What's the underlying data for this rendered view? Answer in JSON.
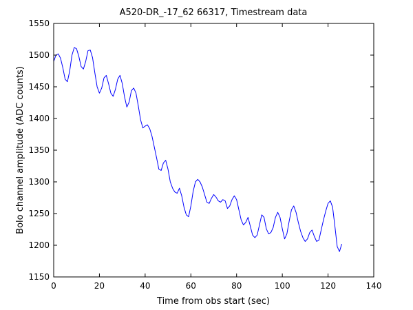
{
  "figure": {
    "background": "#ffffff",
    "axes_color": "#000000",
    "series_color": "#0000ff"
  },
  "chart_data": {
    "type": "line",
    "title": "A520-DR_-17_62 66317, Timestream data",
    "xlabel": "Time from obs start (sec)",
    "ylabel": "Bolo channel amplitude (ADC counts)",
    "xlim": [
      0,
      140
    ],
    "ylim": [
      1150,
      1550
    ],
    "xticks": [
      0,
      20,
      40,
      60,
      80,
      100,
      120,
      140
    ],
    "yticks": [
      1150,
      1200,
      1250,
      1300,
      1350,
      1400,
      1450,
      1500,
      1550
    ],
    "grid": false,
    "legend": "none",
    "series": [
      {
        "color": "#0000ff",
        "x": [
          0,
          1,
          2,
          3,
          4,
          5,
          6,
          7,
          8,
          9,
          10,
          11,
          12,
          13,
          14,
          15,
          16,
          17,
          18,
          19,
          20,
          21,
          22,
          23,
          24,
          25,
          26,
          27,
          28,
          29,
          30,
          31,
          32,
          33,
          34,
          35,
          36,
          37,
          38,
          39,
          40,
          41,
          42,
          43,
          44,
          45,
          46,
          47,
          48,
          49,
          50,
          51,
          52,
          53,
          54,
          55,
          56,
          57,
          58,
          59,
          60,
          61,
          62,
          63,
          64,
          65,
          66,
          67,
          68,
          69,
          70,
          71,
          72,
          73,
          74,
          75,
          76,
          77,
          78,
          79,
          80,
          81,
          82,
          83,
          84,
          85,
          86,
          87,
          88,
          89,
          90,
          91,
          92,
          93,
          94,
          95,
          96,
          97,
          98,
          99,
          100,
          101,
          102,
          103,
          104,
          105,
          106,
          107,
          108,
          109,
          110,
          111,
          112,
          113,
          114,
          115,
          116,
          117,
          118,
          119,
          120,
          121,
          122,
          123,
          124,
          125,
          126
        ],
        "y": [
          1490,
          1500,
          1502,
          1495,
          1480,
          1462,
          1458,
          1475,
          1500,
          1512,
          1510,
          1498,
          1482,
          1478,
          1490,
          1507,
          1508,
          1496,
          1472,
          1450,
          1440,
          1448,
          1464,
          1468,
          1455,
          1440,
          1435,
          1446,
          1462,
          1468,
          1455,
          1434,
          1418,
          1426,
          1444,
          1448,
          1440,
          1420,
          1398,
          1385,
          1388,
          1390,
          1384,
          1372,
          1355,
          1338,
          1320,
          1318,
          1330,
          1334,
          1320,
          1300,
          1290,
          1284,
          1282,
          1290,
          1278,
          1260,
          1248,
          1245,
          1262,
          1285,
          1300,
          1304,
          1300,
          1292,
          1280,
          1268,
          1266,
          1274,
          1280,
          1276,
          1270,
          1268,
          1272,
          1270,
          1258,
          1262,
          1272,
          1278,
          1272,
          1256,
          1240,
          1232,
          1236,
          1244,
          1230,
          1216,
          1212,
          1216,
          1232,
          1248,
          1244,
          1226,
          1218,
          1220,
          1228,
          1244,
          1252,
          1244,
          1226,
          1210,
          1218,
          1238,
          1256,
          1262,
          1252,
          1236,
          1222,
          1212,
          1206,
          1210,
          1220,
          1224,
          1214,
          1206,
          1208,
          1224,
          1240,
          1254,
          1266,
          1270,
          1260,
          1230,
          1198,
          1190,
          1202
        ]
      }
    ]
  }
}
